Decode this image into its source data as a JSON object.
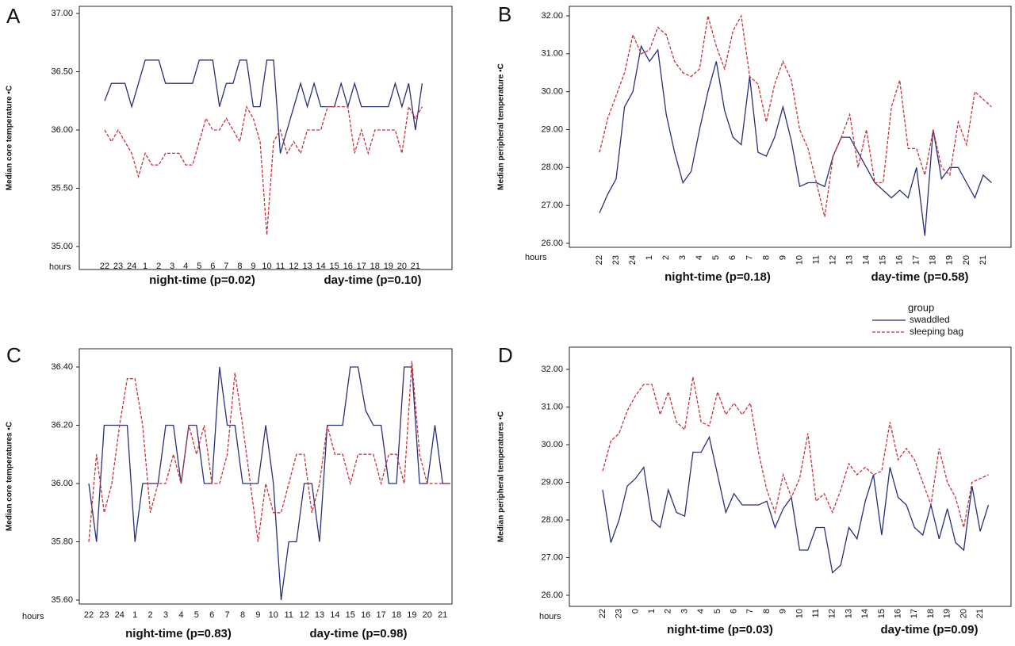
{
  "chart_data": [
    {
      "type": "line",
      "panel": "A",
      "ylabel": "Median core temperature •C",
      "xlabel": "hours",
      "annotations": [
        "night-time (p=0.02)",
        "day-time (p=0.10)"
      ],
      "categories": [
        "22",
        null,
        "23",
        null,
        "24",
        null,
        "1",
        null,
        "2",
        null,
        "3",
        null,
        "4",
        null,
        "5",
        null,
        "6",
        null,
        "7",
        null,
        "8",
        null,
        "9",
        null,
        "10",
        null,
        "11",
        null,
        "12",
        null,
        "13",
        null,
        "14",
        null,
        "15",
        null,
        "16",
        null,
        "17",
        null,
        "18",
        null,
        "19",
        null,
        "20",
        null,
        "21",
        null
      ],
      "ylim": [
        35,
        37
      ],
      "yticks": [
        {
          "value": 35,
          "label": "35.00"
        },
        {
          "value": 35.5,
          "label": "35.50"
        },
        {
          "value": 36,
          "label": "36.00"
        },
        {
          "value": 36.5,
          "label": "36.50"
        },
        {
          "value": 37,
          "label": "37.00"
        }
      ],
      "series": [
        {
          "name": "swaddled",
          "color": "#28307a",
          "dashed": false,
          "values": [
            36.25,
            36.4,
            36.4,
            36.4,
            36.2,
            36.4,
            36.6,
            36.6,
            36.6,
            36.4,
            36.4,
            36.4,
            36.4,
            36.4,
            36.6,
            36.6,
            36.6,
            36.2,
            36.4,
            36.4,
            36.6,
            36.6,
            36.2,
            36.2,
            36.6,
            36.6,
            35.8,
            36.0,
            36.2,
            36.4,
            36.2,
            36.4,
            36.2,
            36.2,
            36.2,
            36.4,
            36.2,
            36.4,
            36.2,
            36.2,
            36.2,
            36.2,
            36.2,
            36.4,
            36.2,
            36.4,
            36.0,
            36.4
          ]
        },
        {
          "name": "sleeping bag",
          "color": "#c8323c",
          "dashed": true,
          "values": [
            36.0,
            35.9,
            36.0,
            35.9,
            35.8,
            35.6,
            35.8,
            35.7,
            35.7,
            35.8,
            35.8,
            35.8,
            35.7,
            35.7,
            35.9,
            36.1,
            36.0,
            36.0,
            36.1,
            36.0,
            35.9,
            36.2,
            36.1,
            35.9,
            35.1,
            35.9,
            36.0,
            35.8,
            35.9,
            35.8,
            36.0,
            36.0,
            36.0,
            36.2,
            36.2,
            36.2,
            36.2,
            35.8,
            36.0,
            35.8,
            36.0,
            36.0,
            36.0,
            36.0,
            35.8,
            36.2,
            36.1,
            36.2
          ]
        }
      ]
    },
    {
      "type": "line",
      "panel": "B",
      "ylabel": "Median peripheral temperature •C",
      "xlabel": "hours",
      "annotations": [
        "night-time (p=0.18)",
        "day-time (p=0.58)"
      ],
      "categories": [
        "22",
        null,
        "23",
        null,
        "24",
        null,
        "1",
        null,
        "2",
        null,
        "3",
        null,
        "4",
        null,
        "5",
        null,
        "6",
        null,
        "7",
        null,
        "8",
        null,
        "9",
        null,
        "10",
        null,
        "11",
        null,
        "12",
        null,
        "13",
        null,
        "14",
        null,
        "15",
        null,
        "16",
        null,
        "17",
        null,
        "18",
        null,
        "19",
        null,
        "20",
        null,
        "21",
        null
      ],
      "ylim": [
        26,
        32
      ],
      "yticks": [
        {
          "value": 26,
          "label": "26.00"
        },
        {
          "value": 27,
          "label": "27.00"
        },
        {
          "value": 28,
          "label": "28.00"
        },
        {
          "value": 29,
          "label": "29.00"
        },
        {
          "value": 30,
          "label": "30.00"
        },
        {
          "value": 31,
          "label": "31.00"
        },
        {
          "value": 32,
          "label": "32.00"
        }
      ],
      "legend": "below",
      "legend_title": "group",
      "series": [
        {
          "name": "swaddled",
          "color": "#28307a",
          "dashed": false,
          "values": [
            26.8,
            27.3,
            27.7,
            29.6,
            30.0,
            31.2,
            30.8,
            31.1,
            29.4,
            28.4,
            27.6,
            27.9,
            29.0,
            30.0,
            30.8,
            29.5,
            28.8,
            28.6,
            30.4,
            28.4,
            28.3,
            28.8,
            29.6,
            28.7,
            27.5,
            27.6,
            27.6,
            27.5,
            28.3,
            28.8,
            28.8,
            28.4,
            28.0,
            27.6,
            27.4,
            27.2,
            27.4,
            27.2,
            28.0,
            26.2,
            29.0,
            27.7,
            28.0,
            28.0,
            27.6,
            27.2,
            27.8,
            27.6
          ]
        },
        {
          "name": "sleeping bag",
          "color": "#c8323c",
          "dashed": true,
          "values": [
            28.4,
            29.3,
            29.9,
            30.5,
            31.5,
            31.0,
            31.1,
            31.7,
            31.5,
            30.8,
            30.5,
            30.4,
            30.6,
            32.0,
            31.2,
            30.6,
            31.6,
            32.0,
            30.4,
            30.2,
            29.2,
            30.2,
            30.8,
            30.3,
            29.0,
            28.5,
            27.6,
            26.7,
            28.3,
            28.8,
            29.4,
            28.0,
            29.0,
            27.6,
            27.6,
            29.6,
            30.3,
            28.5,
            28.5,
            27.8,
            29.0,
            28.0,
            27.8,
            29.2,
            28.6,
            30.0,
            29.8,
            29.6
          ]
        }
      ]
    },
    {
      "type": "line",
      "panel": "C",
      "ylabel": "Median core temperatures •C",
      "xlabel": "hours",
      "annotations": [
        "night-time (p=0.83)",
        "day-time (p=0.98)"
      ],
      "categories": [
        "22",
        null,
        "23",
        null,
        "24",
        null,
        "1",
        null,
        "2",
        null,
        "3",
        null,
        "4",
        null,
        "5",
        null,
        "6",
        null,
        "7",
        null,
        "8",
        null,
        "9",
        null,
        "10",
        null,
        "11",
        null,
        "12",
        null,
        "13",
        null,
        "14",
        null,
        "15",
        null,
        "16",
        null,
        "17",
        null,
        "18",
        null,
        "19",
        null,
        "20",
        null,
        "21",
        null
      ],
      "ylim": [
        35.6,
        36.4
      ],
      "yticks": [
        {
          "value": 35.6,
          "label": "35.60"
        },
        {
          "value": 35.8,
          "label": "35.80"
        },
        {
          "value": 36,
          "label": "36.00"
        },
        {
          "value": 36.2,
          "label": "36.20"
        },
        {
          "value": 36.4,
          "label": "36.40"
        }
      ],
      "series": [
        {
          "name": "swaddled",
          "color": "#28307a",
          "dashed": false,
          "values": [
            36.0,
            35.8,
            36.2,
            36.2,
            36.2,
            36.2,
            35.8,
            36.0,
            36.0,
            36.0,
            36.2,
            36.2,
            36.0,
            36.2,
            36.2,
            36.0,
            36.0,
            36.4,
            36.2,
            36.2,
            36.0,
            36.0,
            36.0,
            36.2,
            36.0,
            35.6,
            35.8,
            35.8,
            36.0,
            36.0,
            35.8,
            36.2,
            36.2,
            36.2,
            36.4,
            36.4,
            36.25,
            36.2,
            36.2,
            36.0,
            36.0,
            36.4,
            36.4,
            36.0,
            36.0,
            36.2,
            36.0,
            36.0
          ]
        },
        {
          "name": "sleeping bag",
          "color": "#c8323c",
          "dashed": true,
          "values": [
            35.8,
            36.1,
            35.9,
            36.0,
            36.2,
            36.36,
            36.36,
            36.2,
            35.9,
            36.0,
            36.0,
            36.1,
            36.0,
            36.2,
            36.1,
            36.2,
            36.0,
            36.0,
            36.1,
            36.38,
            36.2,
            36.0,
            35.8,
            36.0,
            35.9,
            35.9,
            36.0,
            36.1,
            36.1,
            35.9,
            36.0,
            36.2,
            36.1,
            36.1,
            36.0,
            36.1,
            36.1,
            36.1,
            36.0,
            36.1,
            36.1,
            36.0,
            36.42,
            36.1,
            36.0,
            36.0,
            36.0,
            36.0
          ]
        }
      ]
    },
    {
      "type": "line",
      "panel": "D",
      "ylabel": "Median peripheral temperatures •C",
      "xlabel": "hours",
      "annotations": [
        "night-time (p=0.03)",
        "day-time (p=0.09)"
      ],
      "categories": [
        "22",
        null,
        "23",
        null,
        "0",
        null,
        "1",
        null,
        "2",
        null,
        "3",
        null,
        "4",
        null,
        "5",
        null,
        "6",
        null,
        "7",
        null,
        "8",
        null,
        "9",
        null,
        "10",
        null,
        "11",
        null,
        "12",
        null,
        "13",
        null,
        "14",
        null,
        "15",
        null,
        "16",
        null,
        "17",
        null,
        "18",
        null,
        "19",
        null,
        "20",
        null,
        "21",
        null
      ],
      "ylim": [
        26,
        32
      ],
      "yticks": [
        {
          "value": 26,
          "label": "26.00"
        },
        {
          "value": 27,
          "label": "27.00"
        },
        {
          "value": 28,
          "label": "28.00"
        },
        {
          "value": 29,
          "label": "29.00"
        },
        {
          "value": 30,
          "label": "30.00"
        },
        {
          "value": 31,
          "label": "31.00"
        },
        {
          "value": 32,
          "label": "32.00"
        }
      ],
      "series": [
        {
          "name": "swaddled",
          "color": "#28307a",
          "dashed": false,
          "values": [
            28.8,
            27.4,
            28.0,
            28.9,
            29.1,
            29.4,
            28.0,
            27.8,
            28.8,
            28.2,
            28.1,
            29.8,
            29.8,
            30.2,
            29.2,
            28.2,
            28.7,
            28.4,
            28.4,
            28.4,
            28.5,
            27.8,
            28.3,
            28.6,
            27.2,
            27.2,
            27.8,
            27.8,
            26.6,
            26.8,
            27.8,
            27.5,
            28.5,
            29.2,
            27.6,
            29.4,
            28.6,
            28.4,
            27.8,
            27.6,
            28.4,
            27.5,
            28.3,
            27.4,
            27.2,
            28.9,
            27.7,
            28.4
          ]
        },
        {
          "name": "sleeping bag",
          "color": "#c8323c",
          "dashed": true,
          "values": [
            29.3,
            30.1,
            30.3,
            30.9,
            31.3,
            31.6,
            31.6,
            30.8,
            31.4,
            30.6,
            30.4,
            31.8,
            30.6,
            30.5,
            31.4,
            30.8,
            31.1,
            30.8,
            31.1,
            29.8,
            28.8,
            28.2,
            29.2,
            28.6,
            29.1,
            30.3,
            28.5,
            28.7,
            28.2,
            28.8,
            29.5,
            29.2,
            29.4,
            29.2,
            29.3,
            30.6,
            29.6,
            29.9,
            29.6,
            29.0,
            28.4,
            29.9,
            29.0,
            28.6,
            27.8,
            29.0,
            29.1,
            29.2
          ]
        }
      ]
    }
  ]
}
